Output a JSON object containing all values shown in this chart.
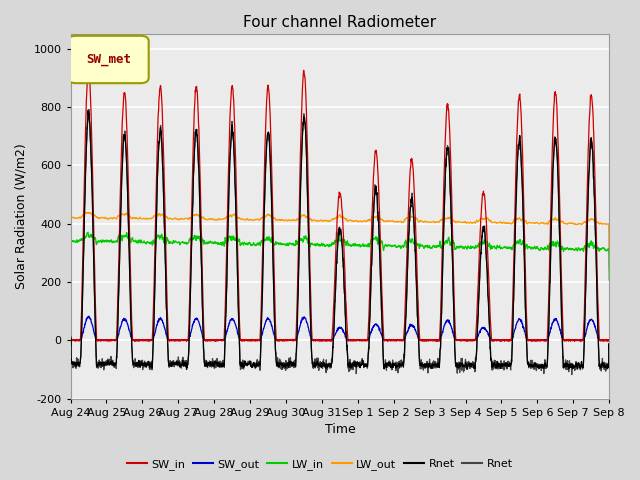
{
  "title": "Four channel Radiometer",
  "ylabel": "Solar Radiation (W/m2)",
  "xlabel": "Time",
  "n_days": 15,
  "ylim": [
    -200,
    1050
  ],
  "yticks": [
    -200,
    0,
    200,
    400,
    600,
    800,
    1000
  ],
  "x_labels": [
    "Aug 24",
    "Aug 25",
    "Aug 26",
    "Aug 27",
    "Aug 28",
    "Aug 29",
    "Aug 30",
    "Aug 31",
    "Sep 1",
    "Sep 2",
    "Sep 3",
    "Sep 4",
    "Sep 5",
    "Sep 6",
    "Sep 7",
    "Sep 8"
  ],
  "SW_in_color": "#cc0000",
  "SW_out_color": "#0000cc",
  "LW_in_color": "#00cc00",
  "LW_out_color": "#ff9900",
  "Rnet_color1": "#000000",
  "Rnet_color2": "#444444",
  "legend_label": "SW_met",
  "legend_box_color": "#ffffcc",
  "legend_box_edge": "#999900",
  "legend_text_color": "#990000",
  "fig_bg_color": "#d8d8d8",
  "plot_bg_color": "#ebebeb",
  "grid_color": "#ffffff",
  "title_fontsize": 11,
  "label_fontsize": 9,
  "tick_fontsize": 8
}
